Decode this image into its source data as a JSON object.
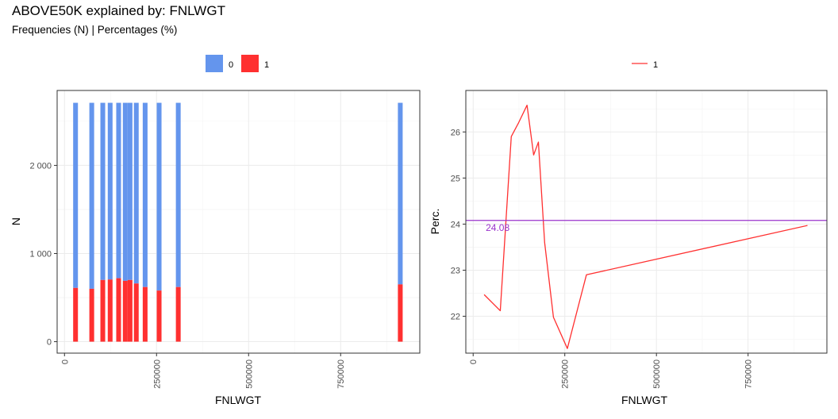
{
  "title": "ABOVE50K explained by: FNLWGT",
  "subtitle": "Frequencies (N) | Percentages (%)",
  "colors": {
    "series_0": "#6495ED",
    "series_1": "#FF3030",
    "reference_line": "#9932CC",
    "panel_border": "#333333",
    "grid": "#EBEBEB"
  },
  "chart_data": [
    {
      "type": "bar",
      "stacked": true,
      "xlabel": "FNLWGT",
      "ylabel": "N",
      "xlim": [
        -20000,
        965000
      ],
      "ylim": [
        -130,
        2850
      ],
      "x_ticks": [
        0,
        250000,
        500000,
        750000
      ],
      "x_tick_labels": [
        "0",
        "250000",
        "500000",
        "750000"
      ],
      "y_ticks": [
        0,
        1000,
        2000
      ],
      "y_tick_labels": [
        "0",
        "1 000",
        "2 000"
      ],
      "grid": true,
      "legend_position": "top",
      "legend": [
        "0",
        "1"
      ],
      "x": [
        30000,
        74000,
        104000,
        124000,
        147000,
        165000,
        178000,
        195000,
        219000,
        257000,
        309000,
        912000
      ],
      "bar_width": 13000,
      "series": [
        {
          "name": "1",
          "values": [
            610,
            600,
            700,
            705,
            720,
            690,
            700,
            660,
            620,
            580,
            620,
            650
          ]
        },
        {
          "name": "0",
          "values": [
            2100,
            2110,
            2010,
            2005,
            1990,
            2020,
            2010,
            2050,
            2090,
            2130,
            2090,
            2060
          ]
        }
      ]
    },
    {
      "type": "line",
      "xlabel": "FNLWGT",
      "ylabel": "Perc.",
      "xlim": [
        -20000,
        965000
      ],
      "ylim": [
        21.2,
        26.9
      ],
      "x_ticks": [
        0,
        250000,
        500000,
        750000
      ],
      "x_tick_labels": [
        "0",
        "250000",
        "500000",
        "750000"
      ],
      "y_ticks": [
        22,
        23,
        24,
        25,
        26
      ],
      "y_tick_labels": [
        "22",
        "23",
        "24",
        "25",
        "26"
      ],
      "grid": true,
      "legend_position": "top",
      "legend": [
        "1"
      ],
      "series": [
        {
          "name": "1",
          "x": [
            30000,
            74000,
            104000,
            124000,
            147000,
            165000,
            178000,
            195000,
            219000,
            257000,
            309000,
            912000
          ],
          "values": [
            22.47,
            22.12,
            25.9,
            26.2,
            26.58,
            25.5,
            25.78,
            23.6,
            21.98,
            21.3,
            22.9,
            23.97
          ]
        }
      ],
      "reference_line": {
        "value": 24.08,
        "label": "24.08"
      }
    }
  ]
}
